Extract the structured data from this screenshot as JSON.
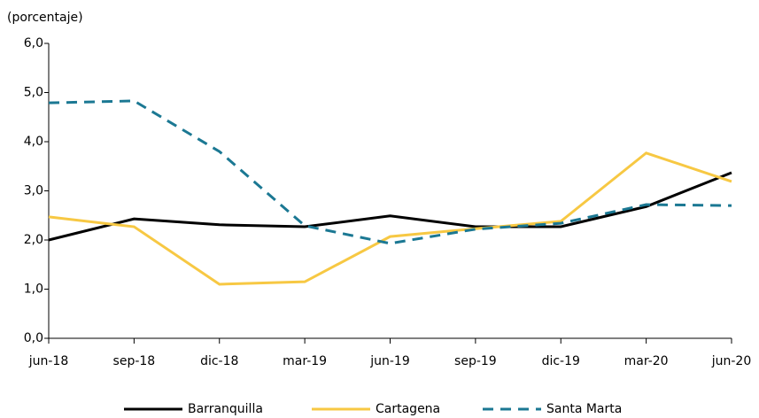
{
  "chart_data": {
    "type": "line",
    "y_label": "(porcentaje)",
    "categories": [
      "jun-18",
      "sep-18",
      "dic-18",
      "mar-19",
      "jun-19",
      "sep-19",
      "dic-19",
      "mar-20",
      "jun-20"
    ],
    "series": [
      {
        "name": "Barranquilla",
        "color": "#000000",
        "dashed": false,
        "values": [
          2.0,
          2.43,
          2.31,
          2.27,
          2.49,
          2.27,
          2.27,
          2.68,
          3.37
        ]
      },
      {
        "name": "Cartagena",
        "color": "#f7c843",
        "dashed": false,
        "values": [
          2.47,
          2.27,
          1.1,
          1.15,
          2.07,
          2.23,
          2.38,
          3.77,
          3.19
        ]
      },
      {
        "name": "Santa Marta",
        "color": "#1b7893",
        "dashed": true,
        "values": [
          4.79,
          4.83,
          3.8,
          2.29,
          1.93,
          2.22,
          2.34,
          2.72,
          2.7
        ]
      }
    ],
    "ylim": [
      0,
      6
    ],
    "yticks": [
      {
        "value": 0,
        "label": "0,0"
      },
      {
        "value": 1,
        "label": "1,0"
      },
      {
        "value": 2,
        "label": "2,0"
      },
      {
        "value": 3,
        "label": "3,0"
      },
      {
        "value": 4,
        "label": "4,0"
      },
      {
        "value": 5,
        "label": "5,0"
      },
      {
        "value": 6,
        "label": "6,0"
      }
    ],
    "grid": false,
    "legend": "bottom"
  }
}
